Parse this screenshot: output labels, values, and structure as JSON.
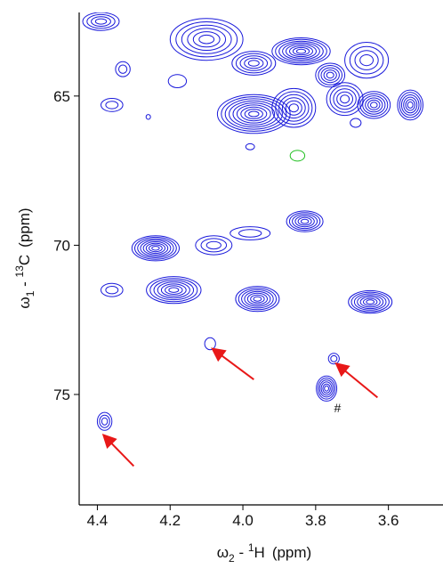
{
  "chart_data": {
    "type": "contour",
    "subtype": "2D NMR HSQC spectrum",
    "title": "",
    "xlabel": {
      "omega": "ω",
      "sub": "2",
      "sep": " - ",
      "sup": "1",
      "nucleus": "H",
      "unit": "(ppm)"
    },
    "ylabel": {
      "omega": "ω",
      "sub": "1",
      "sep": " - ",
      "sup": "13",
      "nucleus": "C",
      "unit": "(ppm)"
    },
    "x_axis": {
      "direction": "reversed",
      "range": [
        4.45,
        3.45
      ],
      "ticks": [
        {
          "value": 4.4,
          "label": "4.4"
        },
        {
          "value": 4.2,
          "label": "4.2"
        },
        {
          "value": 4.0,
          "label": "4.0"
        },
        {
          "value": 3.8,
          "label": "3.8"
        },
        {
          "value": 3.6,
          "label": "3.6"
        }
      ]
    },
    "y_axis": {
      "direction": "downward-increasing",
      "range": [
        62.2,
        78.7
      ],
      "ticks": [
        {
          "value": 65,
          "label": "65"
        },
        {
          "value": 70,
          "label": "70"
        },
        {
          "value": 75,
          "label": "75"
        }
      ]
    },
    "colors": {
      "positive": "#1a1adb",
      "negative": "#1fbf1f",
      "arrow": "#e81818",
      "axis": "#000000"
    },
    "peaks": [
      {
        "x": 4.39,
        "y": 62.5,
        "rx": 0.05,
        "ry": 0.3,
        "levels": 4,
        "sign": "positive"
      },
      {
        "x": 4.33,
        "y": 64.1,
        "rx": 0.02,
        "ry": 0.25,
        "levels": 2,
        "sign": "positive"
      },
      {
        "x": 4.36,
        "y": 65.3,
        "rx": 0.03,
        "ry": 0.22,
        "levels": 2,
        "sign": "positive"
      },
      {
        "x": 4.18,
        "y": 64.5,
        "rx": 0.025,
        "ry": 0.22,
        "levels": 1,
        "sign": "positive"
      },
      {
        "x": 4.26,
        "y": 65.7,
        "rx": 0.006,
        "ry": 0.08,
        "levels": 1,
        "sign": "positive"
      },
      {
        "x": 4.1,
        "y": 63.1,
        "rx": 0.1,
        "ry": 0.7,
        "levels": 6,
        "sign": "positive"
      },
      {
        "x": 3.97,
        "y": 63.9,
        "rx": 0.06,
        "ry": 0.4,
        "levels": 5,
        "sign": "positive"
      },
      {
        "x": 3.84,
        "y": 63.5,
        "rx": 0.08,
        "ry": 0.45,
        "levels": 8,
        "sign": "positive"
      },
      {
        "x": 3.76,
        "y": 64.3,
        "rx": 0.04,
        "ry": 0.4,
        "levels": 5,
        "sign": "positive"
      },
      {
        "x": 3.66,
        "y": 63.8,
        "rx": 0.06,
        "ry": 0.6,
        "levels": 4,
        "sign": "positive"
      },
      {
        "x": 3.72,
        "y": 65.1,
        "rx": 0.05,
        "ry": 0.55,
        "levels": 5,
        "sign": "positive"
      },
      {
        "x": 3.97,
        "y": 65.6,
        "rx": 0.1,
        "ry": 0.65,
        "levels": 9,
        "sign": "positive"
      },
      {
        "x": 3.86,
        "y": 65.4,
        "rx": 0.06,
        "ry": 0.65,
        "levels": 6,
        "sign": "positive"
      },
      {
        "x": 3.64,
        "y": 65.3,
        "rx": 0.045,
        "ry": 0.45,
        "levels": 6,
        "sign": "positive"
      },
      {
        "x": 3.54,
        "y": 65.3,
        "rx": 0.035,
        "ry": 0.5,
        "levels": 6,
        "sign": "positive"
      },
      {
        "x": 3.69,
        "y": 65.9,
        "rx": 0.015,
        "ry": 0.15,
        "levels": 1,
        "sign": "positive"
      },
      {
        "x": 3.98,
        "y": 66.7,
        "rx": 0.012,
        "ry": 0.1,
        "levels": 1,
        "sign": "positive"
      },
      {
        "x": 3.85,
        "y": 67.0,
        "rx": 0.02,
        "ry": 0.18,
        "levels": 1,
        "sign": "negative"
      },
      {
        "x": 3.83,
        "y": 69.2,
        "rx": 0.05,
        "ry": 0.35,
        "levels": 6,
        "sign": "positive"
      },
      {
        "x": 4.24,
        "y": 70.1,
        "rx": 0.065,
        "ry": 0.42,
        "levels": 8,
        "sign": "positive"
      },
      {
        "x": 4.08,
        "y": 70.0,
        "rx": 0.05,
        "ry": 0.32,
        "levels": 3,
        "sign": "positive"
      },
      {
        "x": 3.98,
        "y": 69.6,
        "rx": 0.055,
        "ry": 0.22,
        "levels": 2,
        "sign": "positive"
      },
      {
        "x": 4.36,
        "y": 71.5,
        "rx": 0.03,
        "ry": 0.22,
        "levels": 2,
        "sign": "positive"
      },
      {
        "x": 4.19,
        "y": 71.5,
        "rx": 0.075,
        "ry": 0.45,
        "levels": 7,
        "sign": "positive"
      },
      {
        "x": 3.96,
        "y": 71.8,
        "rx": 0.06,
        "ry": 0.42,
        "levels": 7,
        "sign": "positive"
      },
      {
        "x": 3.65,
        "y": 71.9,
        "rx": 0.06,
        "ry": 0.38,
        "levels": 7,
        "sign": "positive"
      },
      {
        "x": 4.09,
        "y": 73.3,
        "rx": 0.015,
        "ry": 0.2,
        "levels": 1,
        "sign": "positive"
      },
      {
        "x": 3.75,
        "y": 73.8,
        "rx": 0.015,
        "ry": 0.18,
        "levels": 2,
        "sign": "positive"
      },
      {
        "x": 3.77,
        "y": 74.8,
        "rx": 0.028,
        "ry": 0.42,
        "levels": 6,
        "sign": "positive"
      },
      {
        "x": 4.38,
        "y": 75.9,
        "rx": 0.02,
        "ry": 0.3,
        "levels": 3,
        "sign": "positive"
      }
    ],
    "annotations": [
      {
        "text": "#",
        "x": 3.74,
        "y": 75.6
      }
    ],
    "arrows": [
      {
        "from": [
          4.3,
          77.4
        ],
        "to": [
          4.38,
          76.4
        ]
      },
      {
        "from": [
          3.97,
          74.5
        ],
        "to": [
          4.08,
          73.5
        ]
      },
      {
        "from": [
          3.63,
          75.1
        ],
        "to": [
          3.74,
          74.0
        ]
      }
    ]
  }
}
